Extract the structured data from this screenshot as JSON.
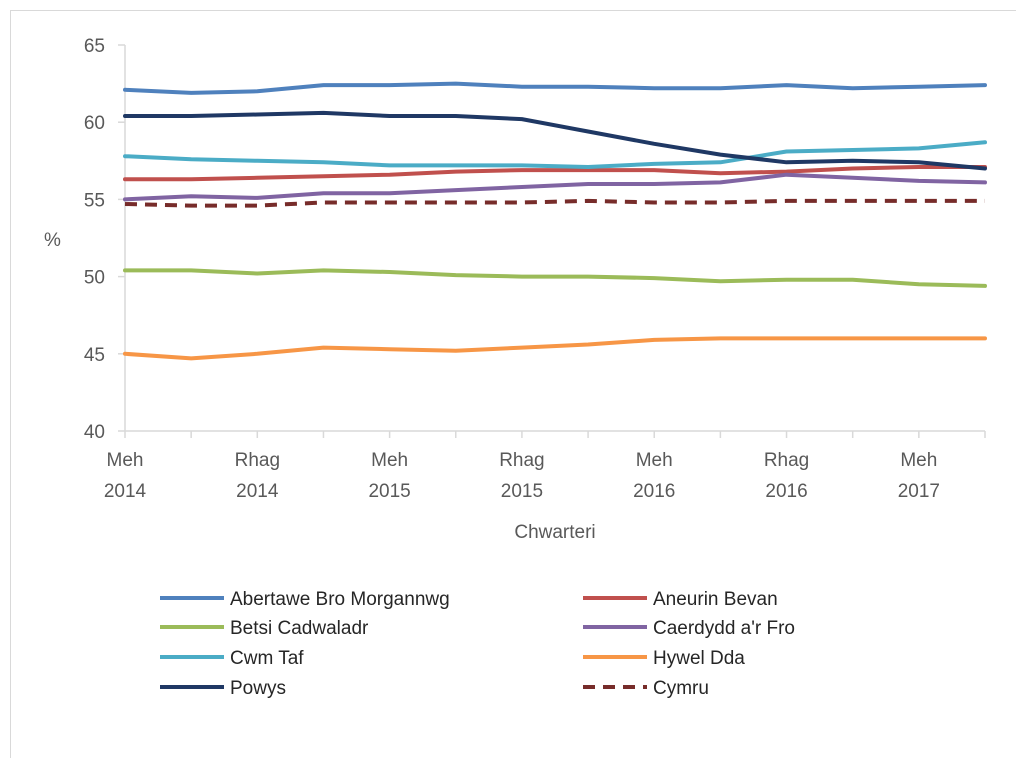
{
  "chart_data": {
    "type": "line",
    "title": "",
    "xlabel": "Chwarteri",
    "ylabel": "%",
    "ylim": [
      40,
      65
    ],
    "yticks": [
      40,
      45,
      50,
      55,
      60,
      65
    ],
    "x_tick_labels": [
      [
        "Meh",
        "2014"
      ],
      [
        "Rhag",
        "2014"
      ],
      [
        "Meh",
        "2015"
      ],
      [
        "Rhag",
        "2015"
      ],
      [
        "Meh",
        "2016"
      ],
      [
        "Rhag",
        "2016"
      ],
      [
        "Meh",
        "2017"
      ]
    ],
    "x_tick_positions": [
      0,
      2,
      4,
      6,
      8,
      10,
      12
    ],
    "num_points": 14,
    "grid": false,
    "legend_position": "bottom",
    "series": [
      {
        "name": "Abertawe Bro Morgannwg",
        "color": "#4f81bd",
        "dash": false,
        "values": [
          62.1,
          61.9,
          62.0,
          62.4,
          62.4,
          62.5,
          62.3,
          62.3,
          62.2,
          62.2,
          62.4,
          62.2,
          62.3,
          62.4
        ]
      },
      {
        "name": "Aneurin Bevan",
        "color": "#c0504d",
        "dash": false,
        "values": [
          56.3,
          56.3,
          56.4,
          56.5,
          56.6,
          56.8,
          56.9,
          56.9,
          56.9,
          56.7,
          56.8,
          57.0,
          57.1,
          57.1
        ]
      },
      {
        "name": "Betsi Cadwaladr",
        "color": "#9bbb59",
        "dash": false,
        "values": [
          50.4,
          50.4,
          50.2,
          50.4,
          50.3,
          50.1,
          50.0,
          50.0,
          49.9,
          49.7,
          49.8,
          49.8,
          49.5,
          49.4
        ]
      },
      {
        "name": "Caerdydd a'r Fro",
        "color": "#8064a2",
        "dash": false,
        "values": [
          55.0,
          55.2,
          55.1,
          55.4,
          55.4,
          55.6,
          55.8,
          56.0,
          56.0,
          56.1,
          56.6,
          56.4,
          56.2,
          56.1
        ]
      },
      {
        "name": "Cwm Taf",
        "color": "#4bacc6",
        "dash": false,
        "values": [
          57.8,
          57.6,
          57.5,
          57.4,
          57.2,
          57.2,
          57.2,
          57.1,
          57.3,
          57.4,
          58.1,
          58.2,
          58.3,
          58.7
        ]
      },
      {
        "name": "Hywel Dda",
        "color": "#f79646",
        "dash": false,
        "values": [
          45.0,
          44.7,
          45.0,
          45.4,
          45.3,
          45.2,
          45.4,
          45.6,
          45.9,
          46.0,
          46.0,
          46.0,
          46.0,
          46.0
        ]
      },
      {
        "name": "Powys",
        "color": "#1f3864",
        "dash": false,
        "values": [
          60.4,
          60.4,
          60.5,
          60.6,
          60.4,
          60.4,
          60.2,
          59.4,
          58.6,
          57.9,
          57.4,
          57.5,
          57.4,
          57.0
        ]
      },
      {
        "name": "Cymru",
        "color": "#772c2a",
        "dash": true,
        "values": [
          54.7,
          54.6,
          54.6,
          54.8,
          54.8,
          54.8,
          54.8,
          54.9,
          54.8,
          54.8,
          54.9,
          54.9,
          54.9,
          54.9
        ]
      }
    ]
  }
}
